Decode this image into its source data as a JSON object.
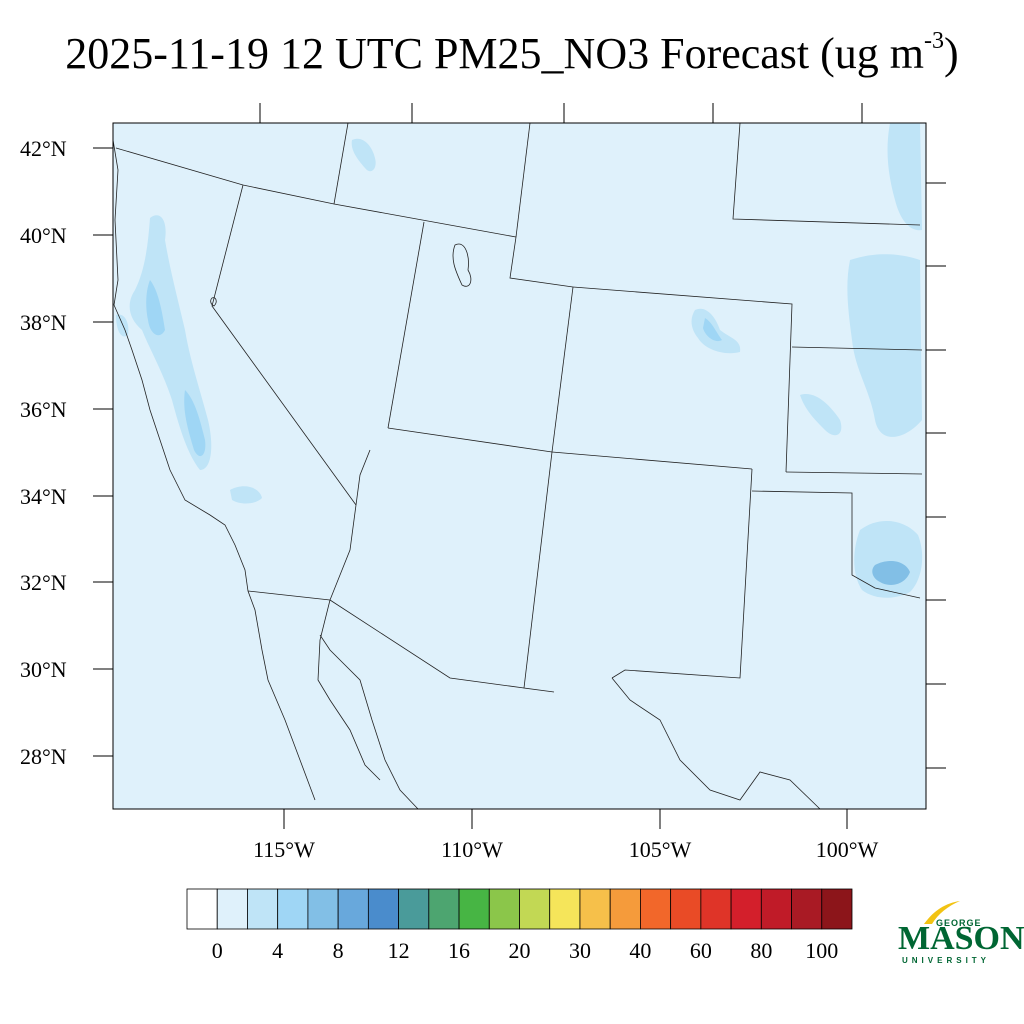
{
  "title": {
    "main": "2025-11-19 12 UTC PM25_NO3 Forecast (ug m",
    "sup": "-3",
    "close": ")"
  },
  "map": {
    "background_color": "#dff1fb",
    "lat_labels": [
      "42°N",
      "40°N",
      "38°N",
      "36°N",
      "34°N",
      "32°N",
      "30°N",
      "28°N"
    ],
    "lon_labels": [
      "115°W",
      "110°W",
      "105°W",
      "100°W"
    ]
  },
  "colorbar": {
    "colors": [
      "#ffffff",
      "#dff1fb",
      "#bfe4f7",
      "#9fd6f5",
      "#82bfe6",
      "#68a8dc",
      "#4a8ccc",
      "#4a9b9a",
      "#4da570",
      "#47b544",
      "#8bc64a",
      "#c2d854",
      "#f5e55a",
      "#f6c04a",
      "#f59b3b",
      "#f2672a",
      "#e94b26",
      "#df3428",
      "#d31f2b",
      "#c01b28",
      "#a91a24",
      "#8c151a"
    ],
    "labels": [
      "0",
      "4",
      "8",
      "12",
      "16",
      "20",
      "30",
      "40",
      "60",
      "80",
      "100"
    ]
  },
  "logo": {
    "line1": "GEORGE",
    "line2": "MASON",
    "line3": "UNIVERSITY",
    "color": "#006633",
    "accent": "#f2c313"
  }
}
